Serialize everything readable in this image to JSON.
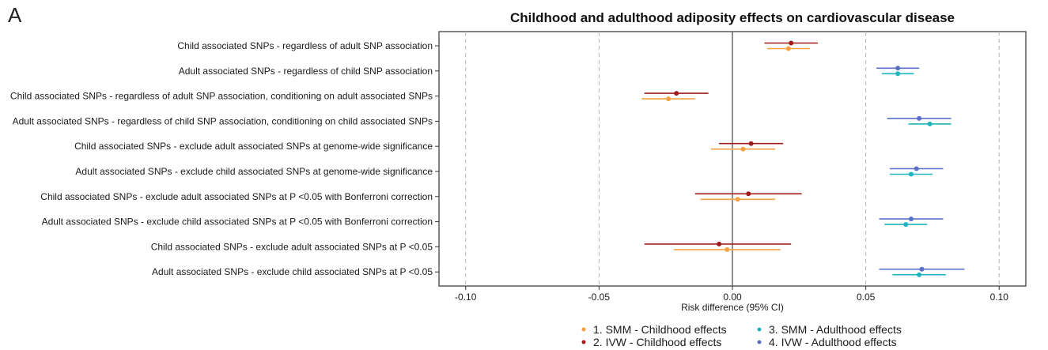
{
  "panel_label": "A",
  "chart_data": {
    "type": "forest",
    "title": "Childhood and adulthood adiposity effects on cardiovascular disease",
    "xlabel": "Risk difference (95% CI)",
    "xlim": [
      -0.11,
      0.11
    ],
    "xticks": [
      -0.1,
      -0.05,
      0.0,
      0.05,
      0.1
    ],
    "xtick_labels": [
      "-0.10",
      "-0.05",
      "0.00",
      "0.05",
      "0.10"
    ],
    "dashed_gridlines": [
      -0.1,
      -0.05,
      0.05,
      0.1
    ],
    "reference_line": 0.0,
    "categories": [
      "Child associated SNPs - regardless of adult SNP association",
      "Adult associated SNPs - regardless of child SNP association",
      "Child associated SNPs - regardless of adult SNP association, conditioning on adult associated SNPs",
      "Adult associated SNPs - regardless of child SNP association, conditioning on child associated SNPs",
      "Child associated SNPs - exclude adult associated SNPs at genome-wide significance",
      "Adult associated SNPs - exclude child associated SNPs at genome-wide significance",
      "Child associated SNPs - exclude adult associated SNPs at P <0.05 with Bonferroni correction",
      "Adult associated SNPs - exclude child associated SNPs at P <0.05 with Bonferroni correction",
      "Child associated SNPs - exclude adult associated SNPs at P <0.05",
      "Adult associated SNPs - exclude child associated SNPs at P <0.05"
    ],
    "series": [
      {
        "name": "1. SMM - Childhood effects",
        "color": "#F5A142",
        "points": [
          {
            "row": 0,
            "est": 0.021,
            "lo": 0.013,
            "hi": 0.029
          },
          {
            "row": 2,
            "est": -0.024,
            "lo": -0.034,
            "hi": -0.014
          },
          {
            "row": 4,
            "est": 0.004,
            "lo": -0.008,
            "hi": 0.016
          },
          {
            "row": 6,
            "est": 0.002,
            "lo": -0.012,
            "hi": 0.016
          },
          {
            "row": 8,
            "est": -0.002,
            "lo": -0.022,
            "hi": 0.018
          }
        ]
      },
      {
        "name": "2. IVW - Childhood effects",
        "color": "#A01C1C",
        "points": [
          {
            "row": 0,
            "est": 0.022,
            "lo": 0.012,
            "hi": 0.032
          },
          {
            "row": 2,
            "est": -0.021,
            "lo": -0.033,
            "hi": -0.009
          },
          {
            "row": 4,
            "est": 0.007,
            "lo": -0.005,
            "hi": 0.019
          },
          {
            "row": 6,
            "est": 0.006,
            "lo": -0.014,
            "hi": 0.026
          },
          {
            "row": 8,
            "est": -0.005,
            "lo": -0.033,
            "hi": 0.022
          }
        ]
      },
      {
        "name": "3. SMM - Adulthood effects",
        "color": "#1EB5BE",
        "points": [
          {
            "row": 1,
            "est": 0.062,
            "lo": 0.056,
            "hi": 0.068
          },
          {
            "row": 3,
            "est": 0.074,
            "lo": 0.066,
            "hi": 0.082
          },
          {
            "row": 5,
            "est": 0.067,
            "lo": 0.059,
            "hi": 0.075
          },
          {
            "row": 7,
            "est": 0.065,
            "lo": 0.057,
            "hi": 0.073
          },
          {
            "row": 9,
            "est": 0.07,
            "lo": 0.06,
            "hi": 0.08
          }
        ]
      },
      {
        "name": "4. IVW - Adulthood effects",
        "color": "#5A6FC8",
        "points": [
          {
            "row": 1,
            "est": 0.062,
            "lo": 0.054,
            "hi": 0.07
          },
          {
            "row": 3,
            "est": 0.07,
            "lo": 0.058,
            "hi": 0.082
          },
          {
            "row": 5,
            "est": 0.069,
            "lo": 0.059,
            "hi": 0.079
          },
          {
            "row": 7,
            "est": 0.067,
            "lo": 0.055,
            "hi": 0.079
          },
          {
            "row": 9,
            "est": 0.071,
            "lo": 0.055,
            "hi": 0.087
          }
        ]
      }
    ],
    "legend": {
      "position": "bottom",
      "items": [
        "1. SMM - Childhood effects",
        "3. SMM - Adulthood effects",
        "2. IVW - Childhood effects",
        "4. IVW - Adulthood effects"
      ]
    }
  }
}
